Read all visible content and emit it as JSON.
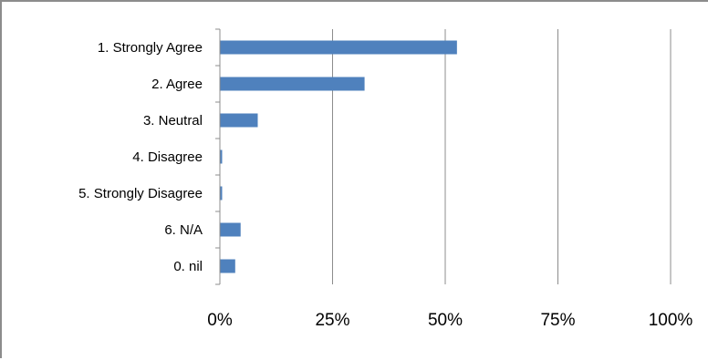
{
  "chart_data": {
    "type": "bar",
    "orientation": "horizontal",
    "categories": [
      "1. Strongly Agree",
      "2. Agree",
      "3. Neutral",
      "4. Disagree",
      "5. Strongly Disagree",
      "6. N/A",
      "0. nil"
    ],
    "values": [
      52.5,
      32,
      8.3,
      0.4,
      0.4,
      4.5,
      3.3
    ],
    "xlim": [
      0,
      100
    ],
    "x_ticks": [
      0,
      25,
      50,
      75,
      100
    ],
    "x_tick_labels": [
      "0%",
      "25%",
      "50%",
      "75%",
      "100%"
    ],
    "grid": true,
    "legend": "none",
    "bar_color": "#4f81bd",
    "grid_color": "#8c8c8c"
  }
}
